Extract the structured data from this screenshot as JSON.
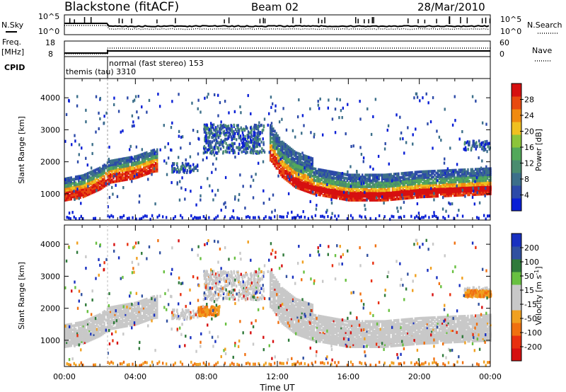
{
  "header": {
    "station": "Blackstone (fitACF)",
    "beam": "Beam 02",
    "date": "28/Mar/2010"
  },
  "top_panels": {
    "nsky_label": "N.Sky",
    "nsky_ticks": [
      "10^5",
      "10^0"
    ],
    "nsearch_label": "N.Search",
    "nsearch_ticks": [
      "10^5",
      "10^0"
    ],
    "freq_label": "Freq.",
    "freq_unit": "[MHz]",
    "freq_ticks": [
      "18",
      "8"
    ],
    "nave_label": "Nave",
    "nave_ticks": [
      "60",
      "0"
    ],
    "cpid_label": "CPID",
    "cpid_modes": [
      {
        "name": "themis (tau) 3310",
        "start_hour": 0
      },
      {
        "name": "normal (fast stereo) 153",
        "start_hour": 2.4
      }
    ]
  },
  "chart_data": [
    {
      "type": "heatmap",
      "title": "",
      "xlabel": "Time UT",
      "ylabel": "Slant Range [km]",
      "x_range_hours": [
        0,
        24
      ],
      "x_ticks": [
        "00:00",
        "04:00",
        "08:00",
        "12:00",
        "16:00",
        "20:00",
        "00:00"
      ],
      "ylim": [
        180,
        4600
      ],
      "y_ticks": [
        1000,
        2000,
        3000,
        4000
      ],
      "colorbar": {
        "label": "Power [dB]",
        "ticks": [
          "4",
          "8",
          "12",
          "16",
          "20",
          "24",
          "28"
        ],
        "colors": [
          "#0a1fd6",
          "#2c4aa8",
          "#3c6f8a",
          "#4a8c6f",
          "#52a85a",
          "#8cc43a",
          "#f0c020",
          "#f08a10",
          "#e84a10",
          "#d61010"
        ]
      },
      "main_band_center_km": [
        [
          0.0,
          1050
        ],
        [
          1.0,
          1150
        ],
        [
          2.0,
          1400
        ],
        [
          2.5,
          1600
        ],
        [
          4.0,
          1750
        ],
        [
          5.0,
          1950
        ],
        [
          11.6,
          2300
        ],
        [
          12.2,
          1800
        ],
        [
          13.0,
          1450
        ],
        [
          14.0,
          1250
        ],
        [
          16.0,
          1050
        ],
        [
          18.0,
          1050
        ],
        [
          20.0,
          1150
        ],
        [
          22.0,
          1200
        ],
        [
          24.0,
          1250
        ]
      ],
      "scatter_patches_km": [
        {
          "hours": [
            7.8,
            11.2
          ],
          "range_km": [
            2300,
            3200
          ]
        },
        {
          "hours": [
            6.0,
            7.5
          ],
          "range_km": [
            1700,
            2000
          ]
        },
        {
          "hours": [
            22.5,
            24.0
          ],
          "range_km": [
            2400,
            2700
          ]
        }
      ]
    },
    {
      "type": "heatmap",
      "title": "",
      "xlabel": "Time UT",
      "ylabel": "Slant Range [km]",
      "x_range_hours": [
        0,
        24
      ],
      "x_ticks": [
        "00:00",
        "04:00",
        "08:00",
        "12:00",
        "16:00",
        "20:00",
        "00:00"
      ],
      "ylim": [
        180,
        4600
      ],
      "y_ticks": [
        1000,
        2000,
        3000,
        4000
      ],
      "colorbar": {
        "label": "Velocity [m s-1]",
        "ticks": [
          "200",
          "100",
          "50",
          "15",
          "-15",
          "-50",
          "-100",
          "-200"
        ],
        "colors": [
          "#1830c0",
          "#3050a0",
          "#2f7a3a",
          "#68c040",
          "#c8c8c8",
          "#c8c8c8",
          "#f0a020",
          "#f07010",
          "#e83010",
          "#d61010"
        ]
      },
      "notable_features": [
        {
          "description": "orange patch",
          "hours": [
            7.5,
            8.7
          ],
          "range_km": [
            1800,
            2100
          ]
        },
        {
          "description": "orange patch",
          "hours": [
            22.5,
            24.0
          ],
          "range_km": [
            2400,
            2600
          ]
        }
      ]
    }
  ]
}
